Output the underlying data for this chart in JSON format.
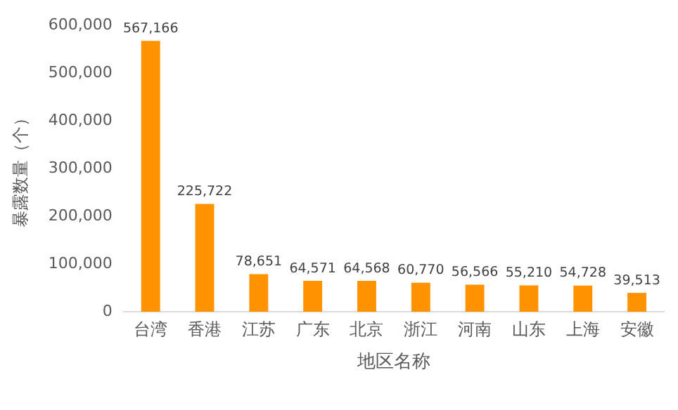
{
  "chart_data": {
    "type": "bar",
    "xlabel": "地区名称",
    "ylabel": "暴露数量（个）",
    "categories": [
      "台湾",
      "香港",
      "江苏",
      "广东",
      "北京",
      "浙江",
      "河南",
      "山东",
      "上海",
      "安徽"
    ],
    "values": [
      567166,
      225722,
      78651,
      64571,
      64568,
      60770,
      56566,
      55210,
      54728,
      39513
    ],
    "value_labels": [
      "567,166",
      "225,722",
      "78,651",
      "64,571",
      "64,568",
      "60,770",
      "56,566",
      "55,210",
      "54,728",
      "39,513"
    ],
    "color": "#ff9200",
    "ylim": [
      0,
      600000
    ],
    "yticks": [
      {
        "value": 0,
        "label": "0"
      },
      {
        "value": 100000,
        "label": "100,000"
      },
      {
        "value": 200000,
        "label": "200,000"
      },
      {
        "value": 300000,
        "label": "300,000"
      },
      {
        "value": 400000,
        "label": "400,000"
      },
      {
        "value": 500000,
        "label": "500,000"
      },
      {
        "value": 600000,
        "label": "600,000"
      }
    ],
    "grid": false,
    "legend": false
  }
}
